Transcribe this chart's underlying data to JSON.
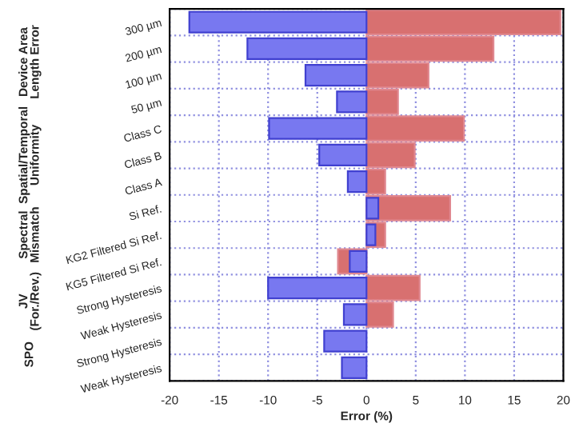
{
  "chart_data": {
    "type": "bar",
    "orientation": "horizontal",
    "xlabel": "Error (%)",
    "categories": [
      "300 µm",
      "200 µm",
      "100 µm",
      "50 µm",
      "Class C",
      "Class B",
      "Class A",
      "Si Ref.",
      "KG2 Filtered Si Ref.",
      "KG5 Filtered Si Ref.",
      "Strong Hysteresis",
      "Weak Hysteresis",
      "Strong Hysteresis",
      "Weak Hysteresis"
    ],
    "series": [
      {
        "color": "#d87070",
        "values": [
          19.7,
          12.9,
          6.3,
          3.2,
          9.9,
          4.9,
          1.9,
          8.5,
          1.9,
          -2.9,
          5.4,
          2.7,
          null,
          null
        ]
      },
      {
        "color": "#7878f0",
        "values": [
          -18.0,
          -12.1,
          -6.2,
          -3.0,
          -9.9,
          -4.8,
          -1.9,
          1.2,
          0.9,
          -1.7,
          -10.0,
          -2.3,
          -4.3,
          -2.5
        ]
      }
    ],
    "xlim": [
      -20,
      20
    ],
    "xticks": [
      -20,
      -15,
      -10,
      -5,
      0,
      5,
      10,
      15,
      20
    ],
    "grid": true,
    "annotations": [
      "Device Area\nLength Error",
      "Spatial/Temporal\nUniformity",
      "Spectral\nMismatch",
      "JV\n(For./Rev.)",
      "SPO"
    ]
  }
}
